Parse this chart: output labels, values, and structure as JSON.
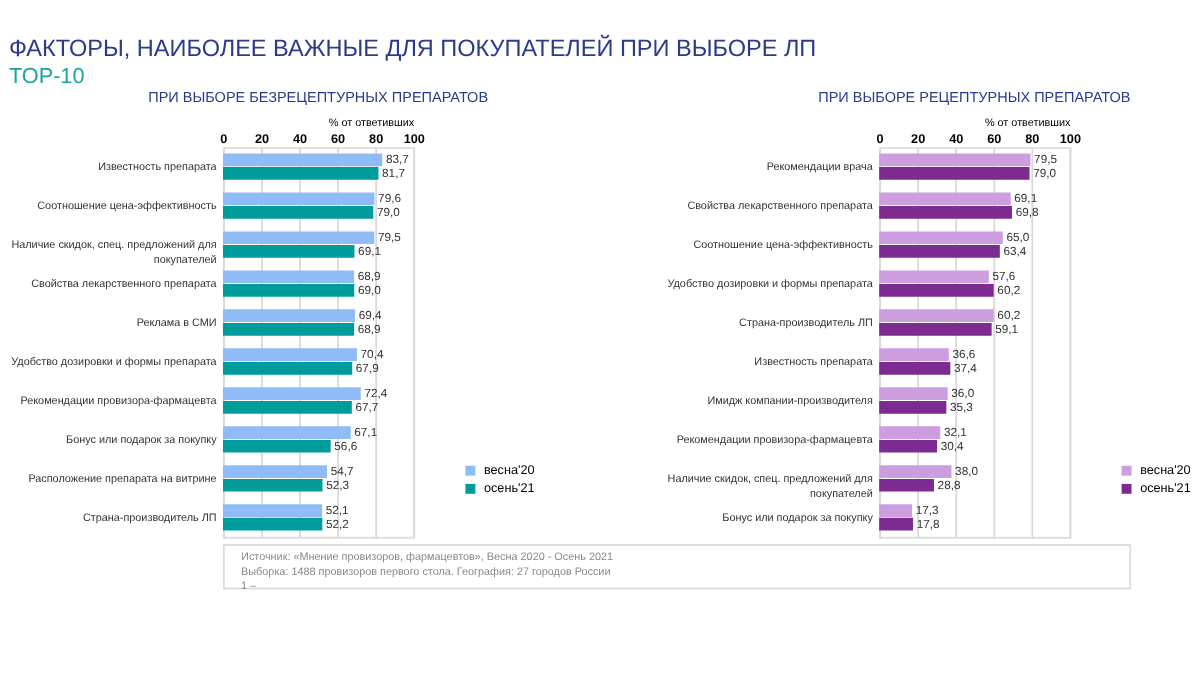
{
  "chart_data": [
    {
      "type": "bar",
      "orientation": "horizontal",
      "title": "ПРИ ВЫБОРЕ БЕЗРЕЦЕПТУРНЫХ  ПРЕПАРАТОВ",
      "xlabel": "%  от ответивших",
      "categories": [
        "Известность препарата",
        "Соотношение цена-эффективность",
        "Наличие скидок, спец. предложений для покупателей",
        "Свойства лекарственного препарата",
        "Реклама в СМИ",
        "Удобство дозировки и формы препарата",
        "Рекомендации провизора-фармацевта",
        "Бонус или подарок за покупку",
        "Расположение препарата на витрине",
        "Страна-производитель ЛП"
      ],
      "series": [
        {
          "name": "весна'20",
          "color": "#8fbcf7",
          "values": [
            83.7,
            79.6,
            79.5,
            68.9,
            69.4,
            70.4,
            72.4,
            67.1,
            54.7,
            52.1
          ],
          "value_labels": [
            "83,7",
            "79,6",
            "79,5",
            "68,9",
            "69,4",
            "70,4",
            "72,4",
            "67,1",
            "54,7",
            "52,1"
          ]
        },
        {
          "name": "осень'21",
          "color": "#009c9c",
          "values": [
            81.7,
            79.0,
            69.1,
            69.0,
            68.9,
            67.9,
            67.7,
            56.6,
            52.3,
            52.2
          ],
          "value_labels": [
            "81,7",
            "79,0",
            "69,1",
            "69,0",
            "68,9",
            "67,9",
            "67,7",
            "56,6",
            "52,3",
            "52,2"
          ]
        }
      ],
      "xlim": [
        0,
        100
      ],
      "xticks": [
        0,
        20,
        40,
        60,
        80,
        100
      ],
      "grid": "x",
      "legend": "bottom right",
      "annotations": [
        "ФАКТОРЫ, НАИБОЛЕЕ ВАЖНЫЕ ДЛЯ ПОКУПАТЕЛЕЙ ПРИ ВЫБОРЕ ЛП",
        "TOP-10",
        "Источник: «Мнение провизоров, фармацевтов», Весна 2020 - Осень 2021",
        "Выборка:  1488 провизоров первого стола. География: 27 городов России",
        "1 –"
      ]
    },
    {
      "type": "bar",
      "orientation": "horizontal",
      "title": "ПРИ ВЫБОРЕ РЕЦЕПТУРНЫХ  ПРЕПАРАТОВ",
      "xlabel": "%  от ответивших",
      "categories": [
        "Рекомендации врача",
        "Свойства лекарственного препарата",
        "Соотношение цена-эффективность",
        "Удобство дозировки и формы препарата",
        "Страна-производитель ЛП",
        "Известность препарата",
        "Имидж компании-производителя",
        "Рекомендации провизора-фармацевта",
        "Наличие скидок, спец. предложений для покупателей",
        "Бонус или подарок за покупку"
      ],
      "series": [
        {
          "name": "весна'20",
          "color": "#cc9ee0",
          "values": [
            79.5,
            69.1,
            65.0,
            57.6,
            60.2,
            36.6,
            36.0,
            32.1,
            38.0,
            17.3
          ],
          "value_labels": [
            "79,5",
            "69,1",
            "65,0",
            "57,6",
            "60,2",
            "36,6",
            "36,0",
            "32,1",
            "38,0",
            "17,3"
          ]
        },
        {
          "name": "осень'21",
          "color": "#7d2a91",
          "values": [
            79.0,
            69.8,
            63.4,
            60.2,
            59.1,
            37.4,
            35.3,
            30.4,
            28.8,
            17.8
          ],
          "value_labels": [
            "79,0",
            "69,8",
            "63,4",
            "60,2",
            "59,1",
            "37,4",
            "35,3",
            "30,4",
            "28,8",
            "17,8"
          ]
        }
      ],
      "xlim": [
        0,
        100
      ],
      "xticks": [
        0,
        20,
        40,
        60,
        80,
        100
      ],
      "grid": "x",
      "legend": "bottom right"
    }
  ]
}
